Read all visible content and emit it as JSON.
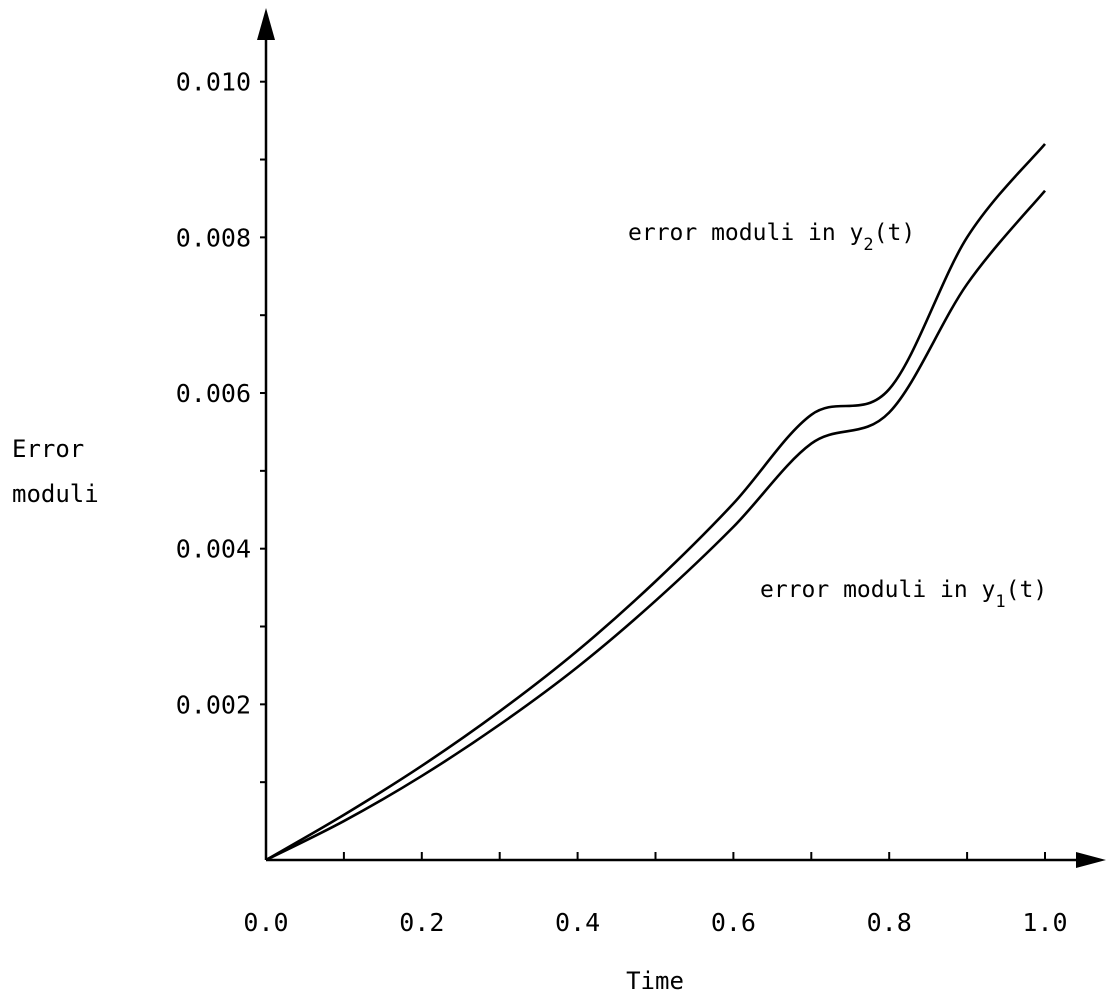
{
  "chart_data": {
    "type": "line",
    "xlabel": "Time",
    "ylabel": [
      "Error",
      "moduli"
    ],
    "xlim": [
      0.0,
      1.0
    ],
    "ylim": [
      0.0,
      0.0106
    ],
    "x_ticks": [
      {
        "value": 0.0,
        "label": "0.0"
      },
      {
        "value": 0.2,
        "label": "0.2"
      },
      {
        "value": 0.4,
        "label": "0.4"
      },
      {
        "value": 0.6,
        "label": "0.6"
      },
      {
        "value": 0.8,
        "label": "0.8"
      },
      {
        "value": 1.0,
        "label": "1.0"
      }
    ],
    "x_minor_ticks": [
      0.1,
      0.3,
      0.5,
      0.7,
      0.9
    ],
    "y_ticks": [
      {
        "value": 0.002,
        "label": "0.002"
      },
      {
        "value": 0.004,
        "label": "0.004"
      },
      {
        "value": 0.006,
        "label": "0.006"
      },
      {
        "value": 0.008,
        "label": "0.008"
      },
      {
        "value": 0.01,
        "label": "0.010"
      }
    ],
    "y_minor_ticks": [
      0.001,
      0.003,
      0.005,
      0.007,
      0.009
    ],
    "grid": false,
    "series": [
      {
        "name": "error moduli in y2(t)",
        "x": [
          0.0,
          0.1,
          0.2,
          0.3,
          0.4,
          0.5,
          0.6,
          0.7,
          0.8,
          0.9,
          1.0
        ],
        "y": [
          0.0,
          0.00058,
          0.00121,
          0.00191,
          0.00269,
          0.00358,
          0.00458,
          0.00572,
          0.00605,
          0.008,
          0.0092
        ]
      },
      {
        "name": "error moduli in y1(t)",
        "x": [
          0.0,
          0.1,
          0.2,
          0.3,
          0.4,
          0.5,
          0.6,
          0.7,
          0.8,
          0.9,
          1.0
        ],
        "y": [
          0.0,
          0.0005,
          0.00108,
          0.00174,
          0.00248,
          0.00333,
          0.00428,
          0.00535,
          0.00575,
          0.0074,
          0.0086
        ]
      }
    ],
    "annotations": [
      {
        "main": "error moduli in y",
        "sub": "2",
        "suffix": "(t)",
        "series": 0
      },
      {
        "main": "error moduli in y",
        "sub": "1",
        "suffix": "(t)",
        "series": 1
      }
    ]
  }
}
